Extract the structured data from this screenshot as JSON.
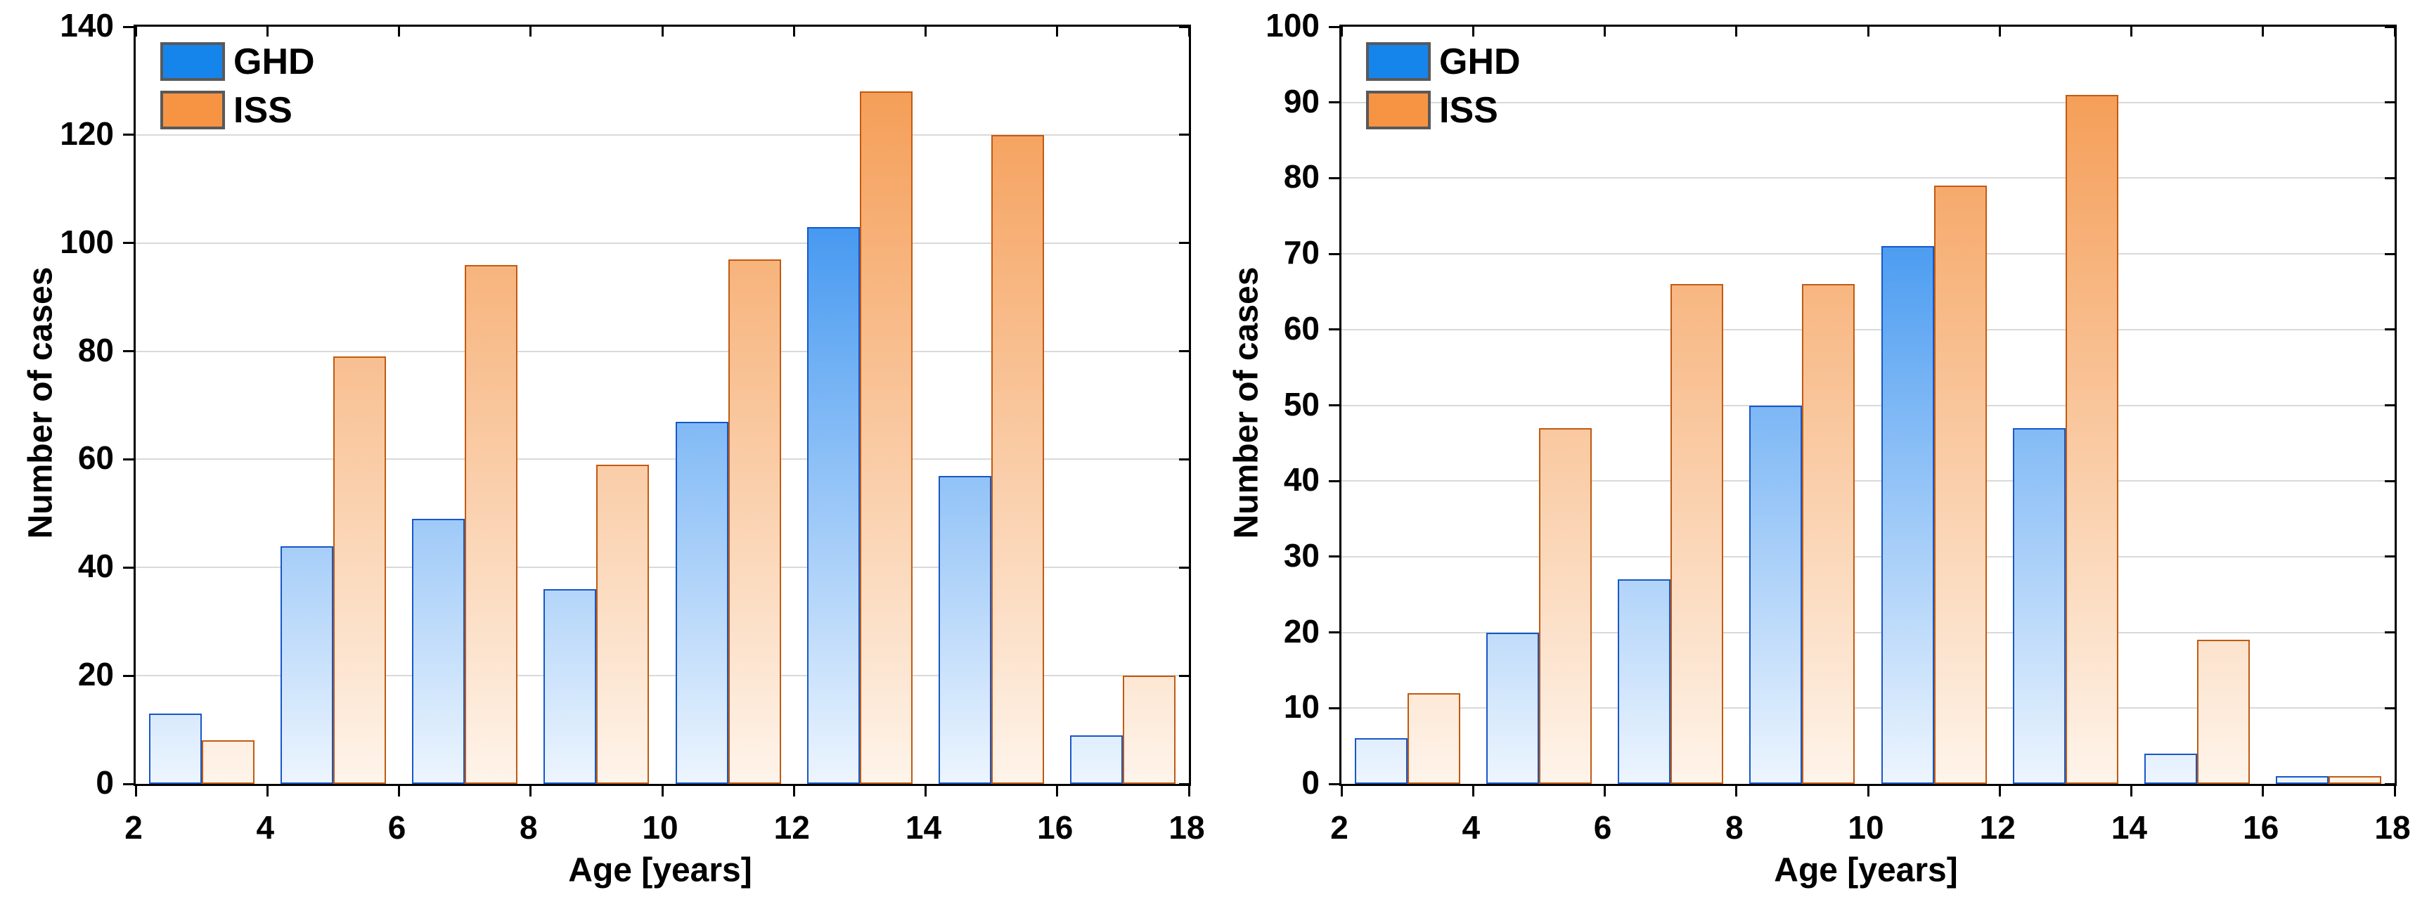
{
  "figure": {
    "background": "#ffffff",
    "legend": {
      "ghd_label": "GHD",
      "iss_label": "ISS"
    },
    "colors": {
      "ghd_fill": "#1585ec",
      "ghd_border": "#1857c8",
      "ghd_gradient_top": "#0a78ec",
      "ghd_gradient_bottom": "#edf5fe",
      "iss_fill": "#f79443",
      "iss_border": "#c25a10",
      "iss_gradient_top": "#f4964a",
      "iss_gradient_bottom": "#fef4ea",
      "gridline": "#d9d9d9",
      "axis": "#000000"
    }
  },
  "chart_data": [
    {
      "type": "bar",
      "title": "",
      "xlabel": "Age [years]",
      "ylabel": "Number of cases",
      "xlim": [
        2,
        18
      ],
      "ylim": [
        0,
        140
      ],
      "xticks": [
        2,
        4,
        6,
        8,
        10,
        12,
        14,
        16,
        18
      ],
      "yticks": [
        0,
        20,
        40,
        60,
        80,
        100,
        120,
        140
      ],
      "grid": "horizontal",
      "legend_position": "top-left",
      "bin_centers": [
        3,
        5,
        7,
        9,
        11,
        13,
        15,
        17
      ],
      "bin_ranges": [
        [
          2,
          4
        ],
        [
          4,
          6
        ],
        [
          6,
          8
        ],
        [
          8,
          10
        ],
        [
          10,
          12
        ],
        [
          12,
          14
        ],
        [
          14,
          16
        ],
        [
          16,
          18
        ]
      ],
      "bar_width_years": 0.8,
      "series": [
        {
          "name": "GHD",
          "values": [
            13,
            44,
            49,
            36,
            67,
            103,
            57,
            9
          ]
        },
        {
          "name": "ISS",
          "values": [
            8,
            79,
            96,
            59,
            97,
            128,
            120,
            20
          ]
        }
      ]
    },
    {
      "type": "bar",
      "title": "",
      "xlabel": "Age [years]",
      "ylabel": "Number of cases",
      "xlim": [
        2,
        18
      ],
      "ylim": [
        0,
        100
      ],
      "xticks": [
        2,
        4,
        6,
        8,
        10,
        12,
        14,
        16,
        18
      ],
      "yticks": [
        0,
        10,
        20,
        30,
        40,
        50,
        60,
        70,
        80,
        90,
        100
      ],
      "grid": "horizontal",
      "legend_position": "top-left",
      "bin_centers": [
        3,
        5,
        7,
        9,
        11,
        13,
        15,
        17
      ],
      "bin_ranges": [
        [
          2,
          4
        ],
        [
          4,
          6
        ],
        [
          6,
          8
        ],
        [
          8,
          10
        ],
        [
          10,
          12
        ],
        [
          12,
          14
        ],
        [
          14,
          16
        ],
        [
          16,
          18
        ]
      ],
      "bar_width_years": 0.8,
      "series": [
        {
          "name": "GHD",
          "values": [
            6,
            20,
            27,
            50,
            71,
            47,
            4,
            1
          ]
        },
        {
          "name": "ISS",
          "values": [
            12,
            47,
            66,
            66,
            79,
            91,
            19,
            1
          ]
        }
      ]
    }
  ]
}
